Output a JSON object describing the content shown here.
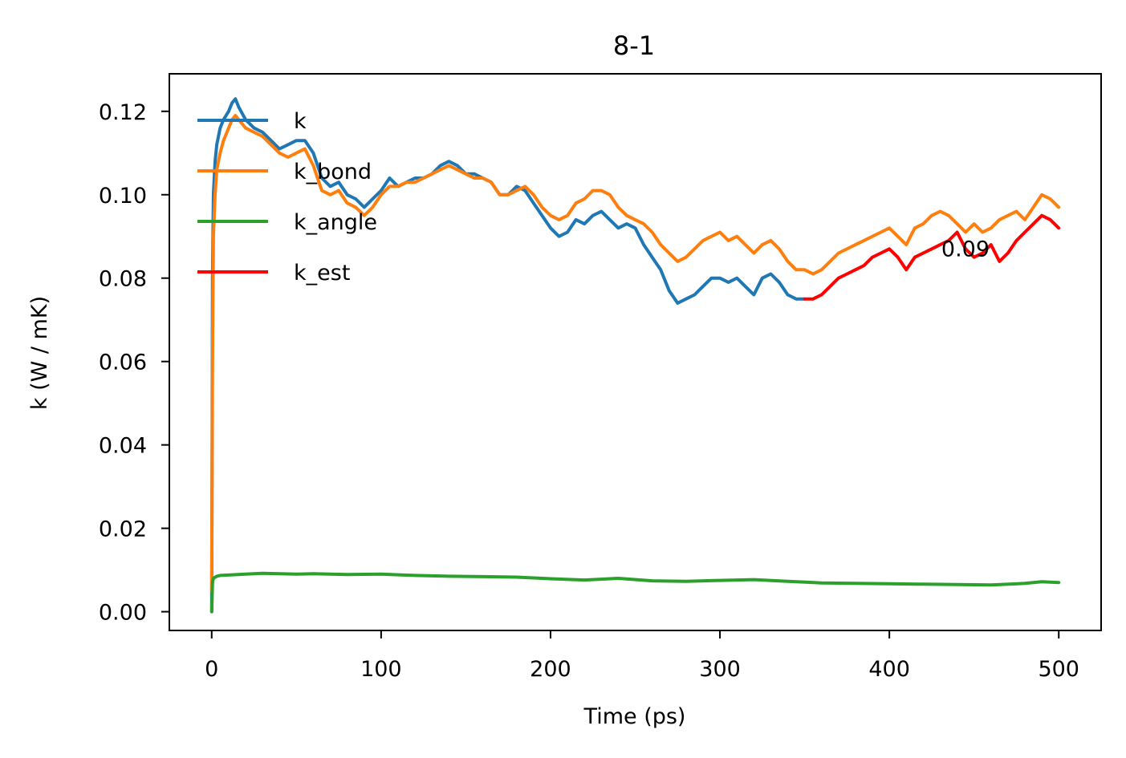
{
  "chart_data": {
    "type": "line",
    "title": "8-1",
    "xlabel": "Time (ps)",
    "ylabel": "k (W / mK)",
    "xlim": [
      -25,
      525
    ],
    "ylim": [
      -0.0045,
      0.129
    ],
    "xticks": [
      0,
      100,
      200,
      300,
      400,
      500
    ],
    "xtick_labels": [
      "0",
      "100",
      "200",
      "300",
      "400",
      "500"
    ],
    "yticks": [
      0.0,
      0.02,
      0.04,
      0.06,
      0.08,
      0.1,
      0.12
    ],
    "ytick_labels": [
      "0.00",
      "0.02",
      "0.04",
      "0.06",
      "0.08",
      "0.10",
      "0.12"
    ],
    "grid": false,
    "legend_position": "upper-left",
    "series": [
      {
        "name": "k",
        "color": "#1f77b4",
        "x": [
          0,
          0.5,
          1,
          2,
          3,
          5,
          7,
          10,
          12,
          14,
          16,
          20,
          25,
          30,
          35,
          40,
          45,
          50,
          55,
          60,
          65,
          70,
          75,
          80,
          85,
          90,
          95,
          100,
          105,
          110,
          115,
          120,
          125,
          130,
          135,
          140,
          145,
          150,
          155,
          160,
          165,
          170,
          175,
          180,
          185,
          190,
          195,
          200,
          205,
          210,
          215,
          220,
          225,
          230,
          235,
          240,
          245,
          250,
          255,
          260,
          265,
          270,
          275,
          280,
          285,
          290,
          295,
          300,
          305,
          310,
          315,
          320,
          325,
          330,
          335,
          340,
          345,
          350
        ],
        "values": [
          0.0,
          0.08,
          0.1,
          0.108,
          0.112,
          0.116,
          0.118,
          0.12,
          0.122,
          0.123,
          0.121,
          0.118,
          0.116,
          0.115,
          0.113,
          0.111,
          0.112,
          0.113,
          0.113,
          0.11,
          0.104,
          0.102,
          0.103,
          0.1,
          0.099,
          0.097,
          0.099,
          0.101,
          0.104,
          0.102,
          0.103,
          0.104,
          0.104,
          0.105,
          0.107,
          0.108,
          0.107,
          0.105,
          0.105,
          0.104,
          0.103,
          0.1,
          0.1,
          0.102,
          0.101,
          0.098,
          0.095,
          0.092,
          0.09,
          0.091,
          0.094,
          0.093,
          0.095,
          0.096,
          0.094,
          0.092,
          0.093,
          0.092,
          0.088,
          0.085,
          0.082,
          0.077,
          0.074,
          0.075,
          0.076,
          0.078,
          0.08,
          0.08,
          0.079,
          0.08,
          0.078,
          0.076,
          0.08,
          0.081,
          0.079,
          0.076,
          0.075,
          0.075
        ]
      },
      {
        "name": "k_bond",
        "color": "#ff7f0e",
        "x": [
          0,
          0.5,
          1,
          2,
          3,
          5,
          7,
          10,
          12,
          14,
          16,
          20,
          25,
          30,
          35,
          40,
          45,
          50,
          55,
          60,
          65,
          70,
          75,
          80,
          85,
          90,
          95,
          100,
          105,
          110,
          115,
          120,
          125,
          130,
          135,
          140,
          145,
          150,
          155,
          160,
          165,
          170,
          175,
          180,
          185,
          190,
          195,
          200,
          205,
          210,
          215,
          220,
          225,
          230,
          235,
          240,
          245,
          250,
          255,
          260,
          265,
          270,
          275,
          280,
          285,
          290,
          295,
          300,
          305,
          310,
          315,
          320,
          325,
          330,
          335,
          340,
          345,
          350,
          355,
          360,
          365,
          370,
          375,
          380,
          385,
          390,
          395,
          400,
          405,
          410,
          415,
          420,
          425,
          430,
          435,
          440,
          445,
          450,
          455,
          460,
          465,
          470,
          475,
          480,
          485,
          490,
          495,
          500
        ],
        "values": [
          0.005,
          0.06,
          0.09,
          0.1,
          0.106,
          0.11,
          0.113,
          0.116,
          0.118,
          0.119,
          0.118,
          0.116,
          0.115,
          0.114,
          0.112,
          0.11,
          0.109,
          0.11,
          0.111,
          0.107,
          0.101,
          0.1,
          0.101,
          0.098,
          0.097,
          0.095,
          0.097,
          0.1,
          0.102,
          0.102,
          0.103,
          0.103,
          0.104,
          0.105,
          0.106,
          0.107,
          0.106,
          0.105,
          0.104,
          0.104,
          0.103,
          0.1,
          0.1,
          0.101,
          0.102,
          0.1,
          0.097,
          0.095,
          0.094,
          0.095,
          0.098,
          0.099,
          0.101,
          0.101,
          0.1,
          0.097,
          0.095,
          0.094,
          0.093,
          0.091,
          0.088,
          0.086,
          0.084,
          0.085,
          0.087,
          0.089,
          0.09,
          0.091,
          0.089,
          0.09,
          0.088,
          0.086,
          0.088,
          0.089,
          0.087,
          0.084,
          0.082,
          0.082,
          0.081,
          0.082,
          0.084,
          0.086,
          0.087,
          0.088,
          0.089,
          0.09,
          0.091,
          0.092,
          0.09,
          0.088,
          0.092,
          0.093,
          0.095,
          0.096,
          0.095,
          0.093,
          0.091,
          0.093,
          0.091,
          0.092,
          0.094,
          0.095,
          0.096,
          0.094,
          0.097,
          0.1,
          0.099,
          0.097
        ]
      },
      {
        "name": "k_angle",
        "color": "#2ca02c",
        "x": [
          0,
          0.5,
          1,
          3,
          5,
          10,
          20,
          30,
          40,
          50,
          60,
          80,
          100,
          120,
          140,
          160,
          180,
          200,
          220,
          240,
          260,
          280,
          300,
          320,
          340,
          360,
          380,
          400,
          420,
          440,
          460,
          480,
          490,
          500
        ],
        "values": [
          0.0,
          0.007,
          0.008,
          0.0085,
          0.0087,
          0.0088,
          0.009,
          0.0092,
          0.0091,
          0.009,
          0.0091,
          0.0089,
          0.009,
          0.0087,
          0.0085,
          0.0084,
          0.0083,
          0.0079,
          0.0076,
          0.008,
          0.0074,
          0.0073,
          0.0075,
          0.0077,
          0.0073,
          0.0069,
          0.0068,
          0.0067,
          0.0066,
          0.0065,
          0.0064,
          0.0068,
          0.0072,
          0.007
        ]
      },
      {
        "name": "k_est",
        "color": "#ff0000",
        "x": [
          350,
          355,
          360,
          365,
          370,
          375,
          380,
          385,
          390,
          395,
          400,
          405,
          410,
          415,
          420,
          425,
          430,
          435,
          440,
          445,
          450,
          455,
          460,
          465,
          470,
          475,
          480,
          485,
          490,
          495,
          500
        ],
        "values": [
          0.075,
          0.075,
          0.076,
          0.078,
          0.08,
          0.081,
          0.082,
          0.083,
          0.085,
          0.086,
          0.087,
          0.085,
          0.082,
          0.085,
          0.086,
          0.087,
          0.088,
          0.089,
          0.091,
          0.087,
          0.085,
          0.086,
          0.088,
          0.084,
          0.086,
          0.089,
          0.091,
          0.093,
          0.095,
          0.094,
          0.092
        ]
      }
    ],
    "annotations": [
      {
        "text": "0.09",
        "x": 452,
        "y": 0.0875
      }
    ]
  }
}
